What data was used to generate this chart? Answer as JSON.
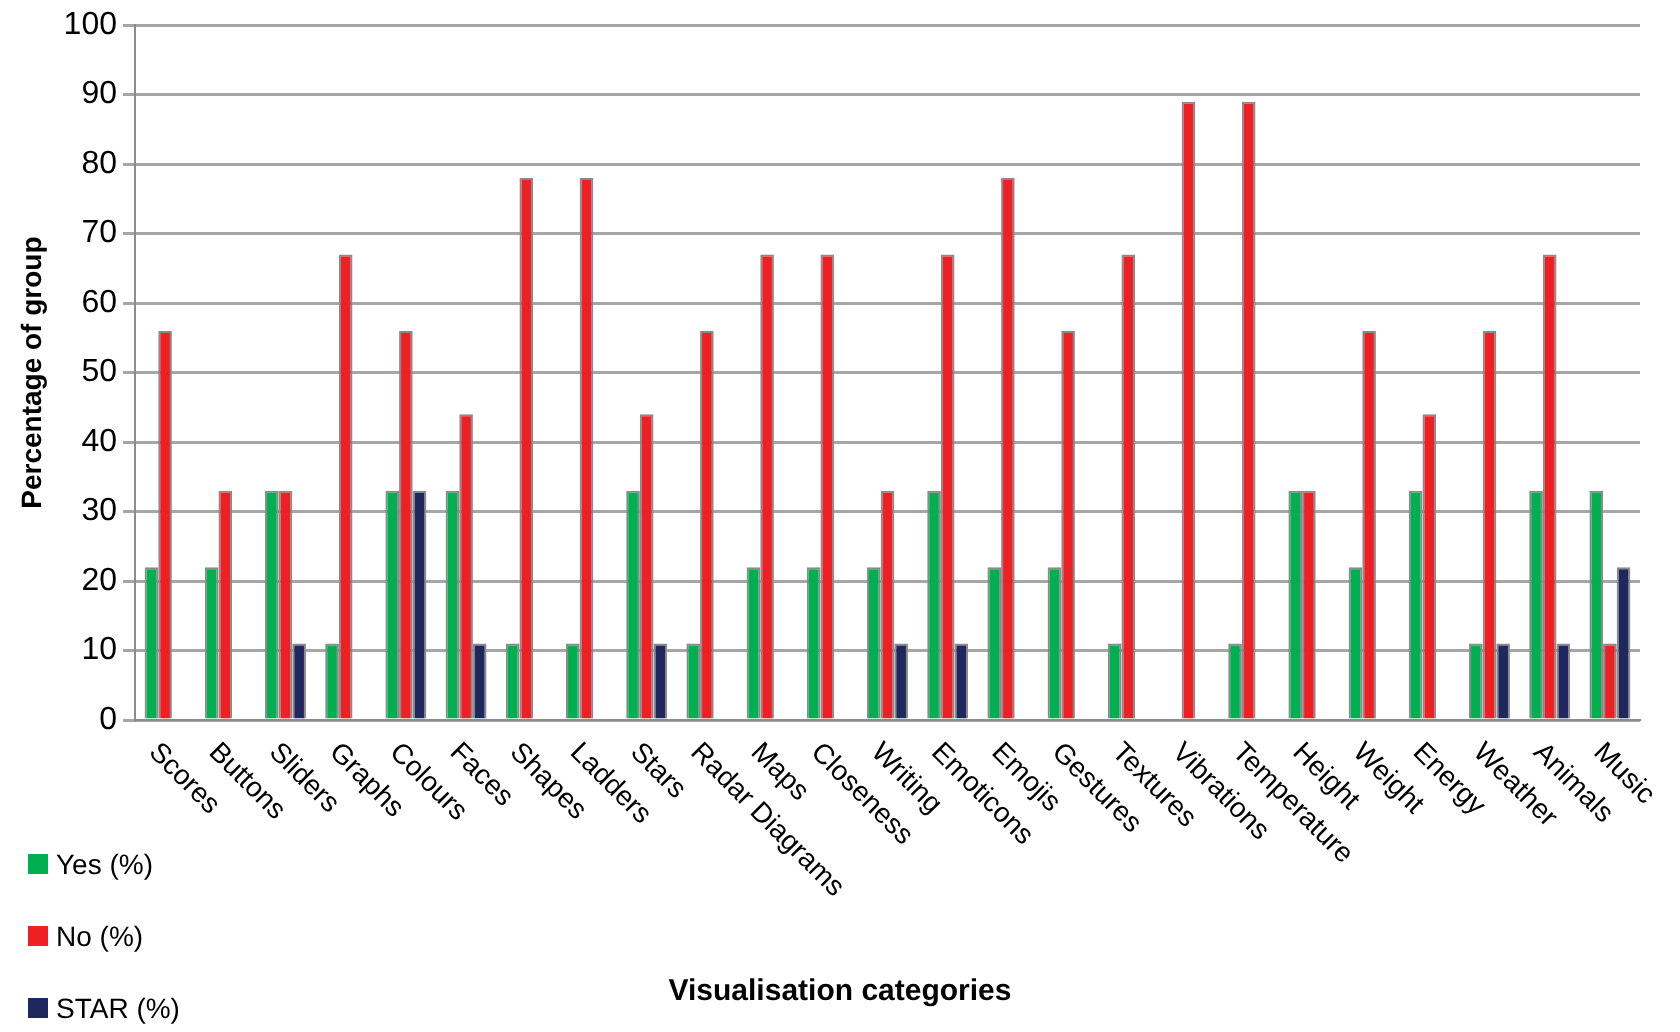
{
  "chart_data": {
    "type": "bar",
    "xlabel": "Visualisation categories",
    "ylabel": "Percentage of group",
    "categories": [
      "Scores",
      "Buttons",
      "Sliders",
      "Graphs",
      "Colours",
      "Faces",
      "Shapes",
      "Ladders",
      "Stars",
      "Radar Diagrams",
      "Maps",
      "Closeness",
      "Writing",
      "Emoticons",
      "Emojis",
      "Gestures",
      "Textures",
      "Vibrations",
      "Temperature",
      "Height",
      "Weight",
      "Energy",
      "Weather",
      "Animals",
      "Music"
    ],
    "series": [
      {
        "name": "Yes (%)",
        "color": "#00b050",
        "values": [
          22,
          22,
          33,
          11,
          33,
          33,
          11,
          11,
          33,
          11,
          22,
          22,
          22,
          33,
          22,
          22,
          11,
          0,
          11,
          33,
          22,
          33,
          11,
          33,
          33
        ]
      },
      {
        "name": "No (%)",
        "color": "#ee2024",
        "values": [
          56,
          33,
          33,
          67,
          56,
          44,
          78,
          78,
          44,
          56,
          67,
          67,
          33,
          67,
          78,
          56,
          67,
          89,
          89,
          33,
          56,
          44,
          56,
          67,
          11
        ]
      },
      {
        "name": "STAR (%)",
        "color": "#1f285e",
        "values": [
          0,
          0,
          11,
          0,
          33,
          11,
          0,
          0,
          11,
          0,
          0,
          0,
          11,
          11,
          0,
          0,
          0,
          0,
          0,
          0,
          0,
          0,
          11,
          11,
          22
        ]
      }
    ],
    "ylim": [
      0,
      100
    ],
    "yticks": [
      0,
      10,
      20,
      30,
      40,
      50,
      60,
      70,
      80,
      90,
      100
    ],
    "grid": "y",
    "legend": "bottom left"
  }
}
